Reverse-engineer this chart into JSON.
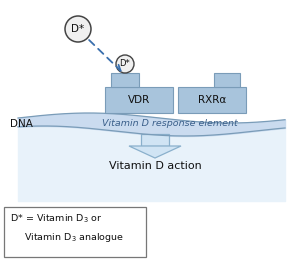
{
  "bg_color": "#ffffff",
  "dna_wave_color": "#c5d8ee",
  "dna_fill_color": "#dce9f5",
  "dna_fill_bottom": "#e8f2fa",
  "receptor_color": "#a8c4dc",
  "receptor_edge": "#7a9cb8",
  "circle_fill": "#f0f0f0",
  "circle_edge": "#444444",
  "arrow_color": "#3a6fad",
  "big_arrow_fill": "#d0e4f4",
  "big_arrow_edge": "#8ab0cc",
  "text_color": "#111111",
  "italic_text_color": "#3a5f8a",
  "dna_label": "DNA",
  "vdr_label": "VDR",
  "rxr_label": "RXRα",
  "d_label": "D*",
  "response_element_label": "Vitamin D response element",
  "action_label": "Vitamin D action",
  "legend_text1": "D* = Vitamin D",
  "legend_text2": "Vitamin D",
  "legend_suffix1": " or",
  "legend_suffix2": " analogue"
}
